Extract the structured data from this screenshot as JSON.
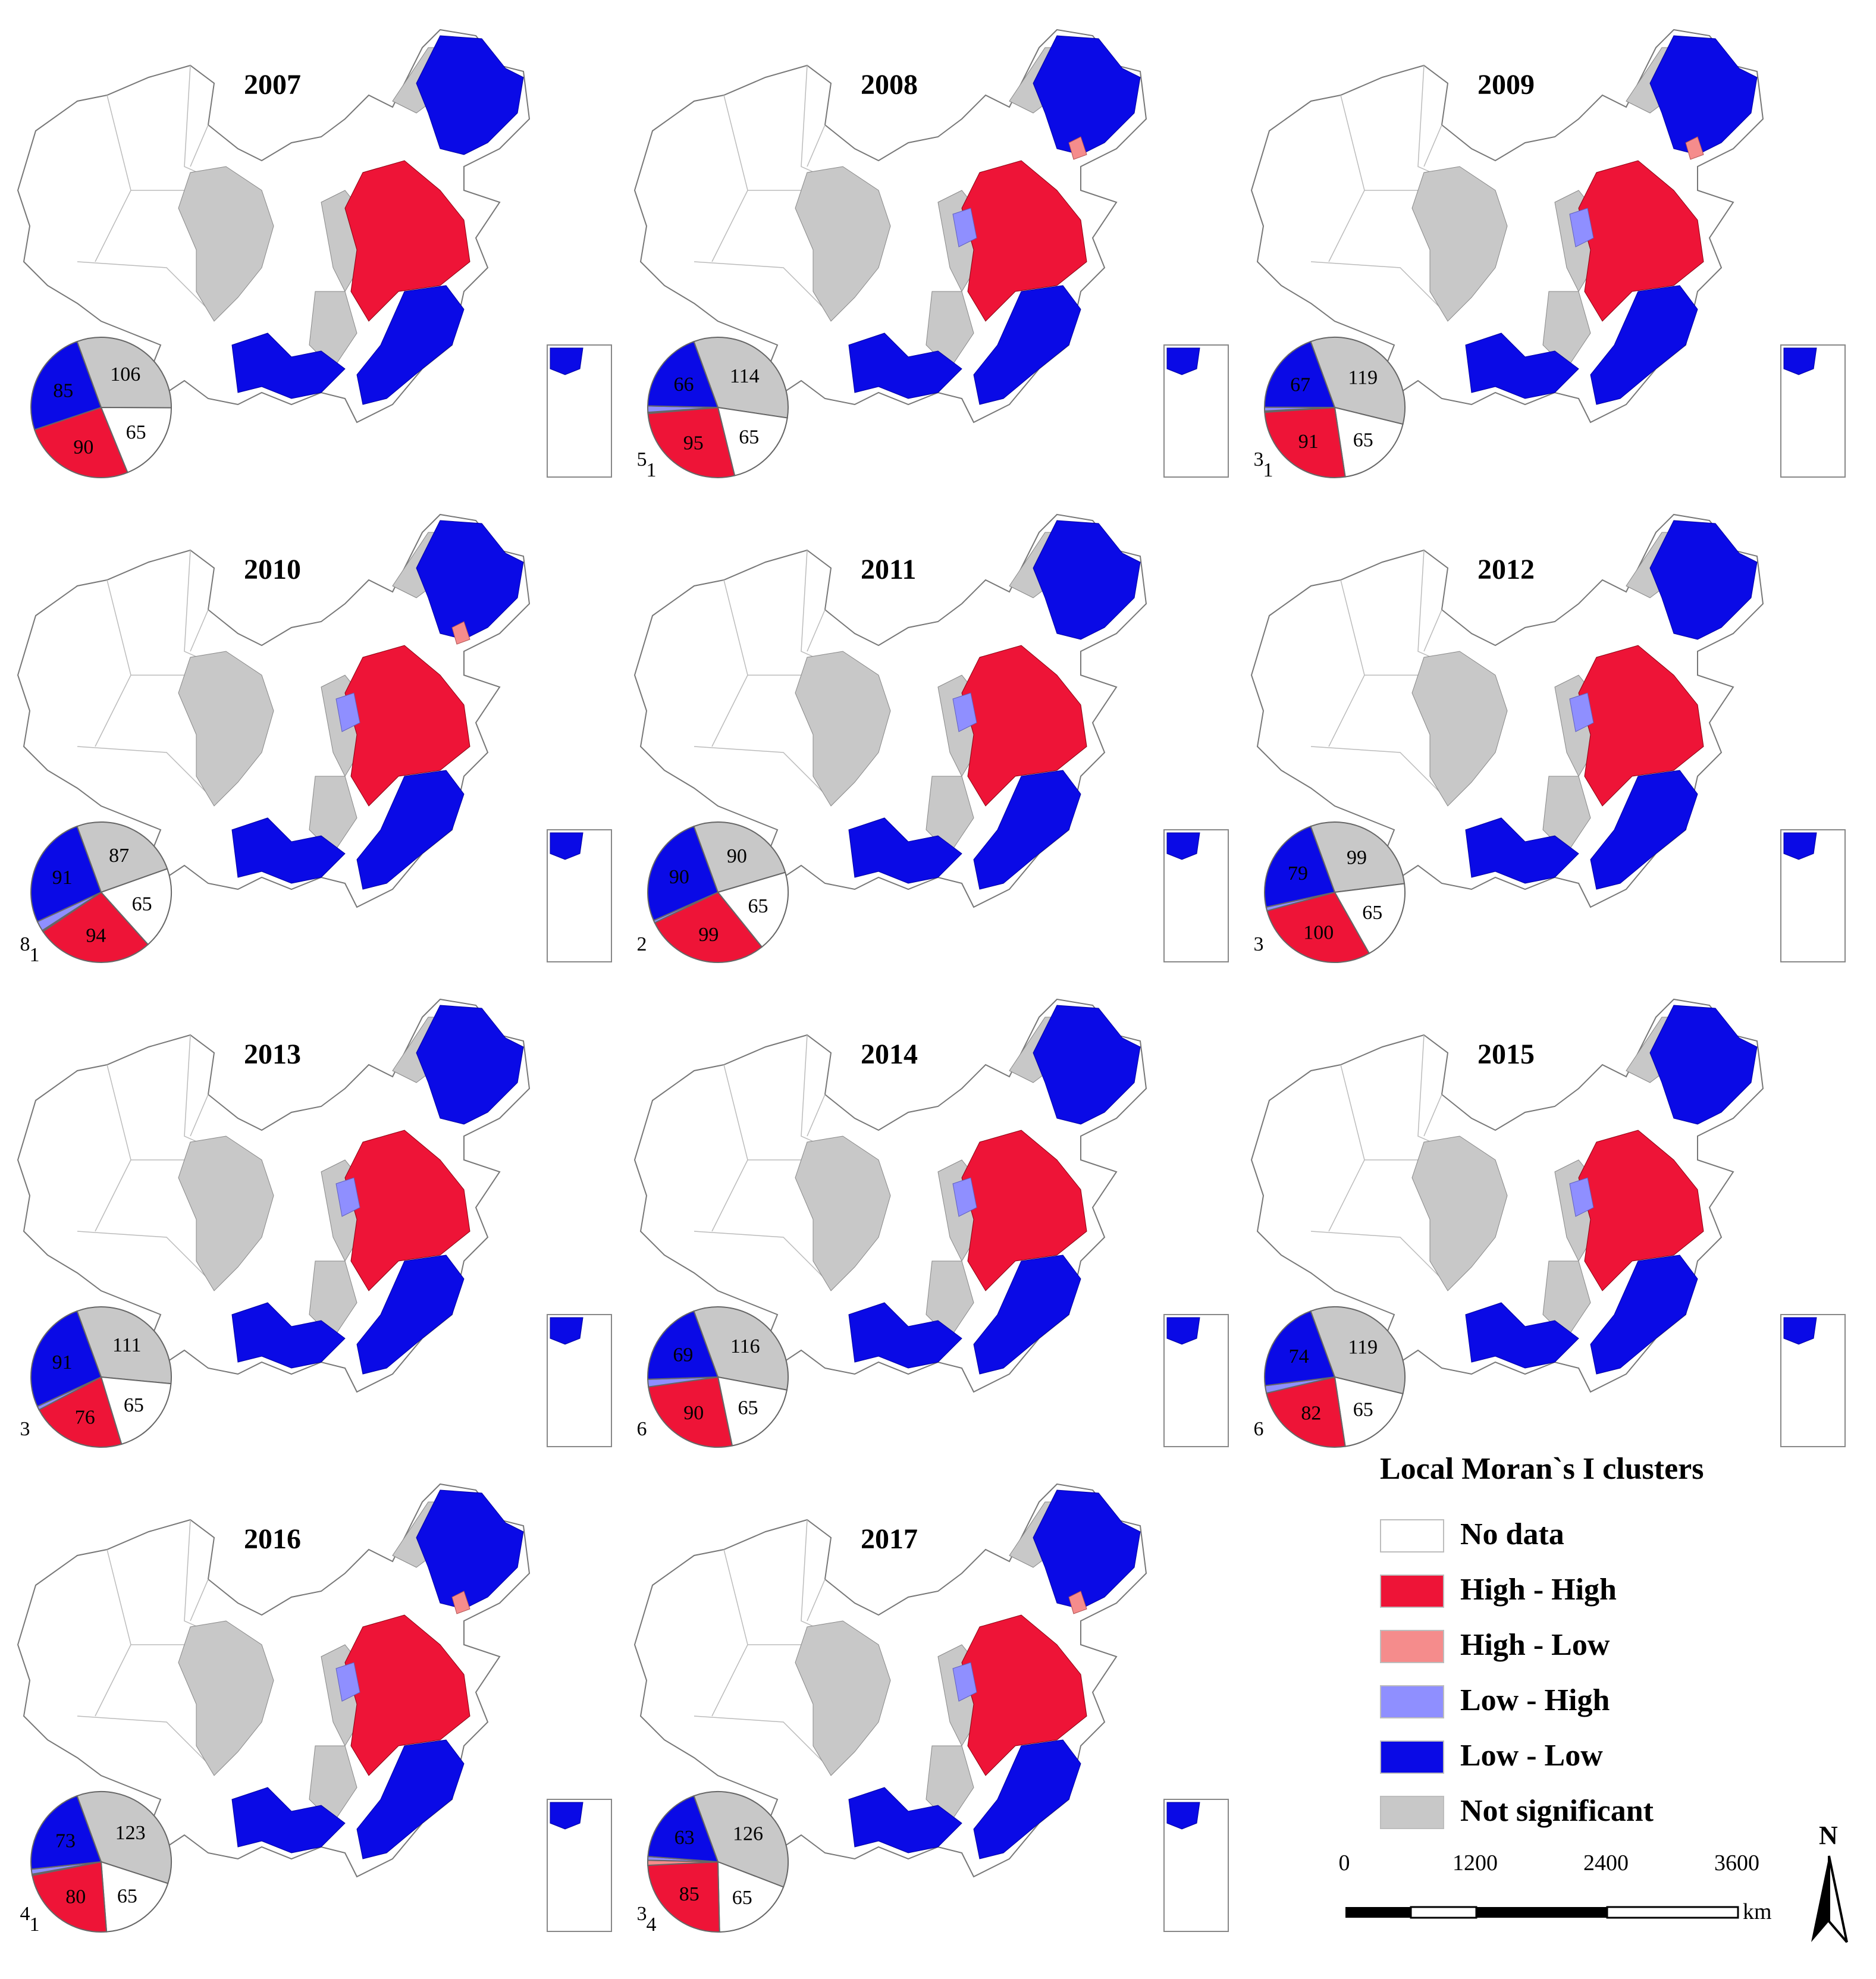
{
  "legend": {
    "title": "Local Moran`s I clusters",
    "items": [
      {
        "key": "nodata",
        "label": "No data",
        "color": "#ffffff"
      },
      {
        "key": "hh",
        "label": "High - High",
        "color": "#ee1437"
      },
      {
        "key": "hl",
        "label": "High - Low",
        "color": "#f58c8c"
      },
      {
        "key": "lh",
        "label": "Low - High",
        "color": "#8f8fff"
      },
      {
        "key": "ll",
        "label": "Low - Low",
        "color": "#0a0ae6"
      },
      {
        "key": "ns",
        "label": "Not significant",
        "color": "#c8c8c8"
      }
    ]
  },
  "scale_bar": {
    "ticks": [
      "0",
      "1200",
      "2400",
      "3600"
    ],
    "unit": "km"
  },
  "north_arrow": {
    "label": "N"
  },
  "chart_data": {
    "type": "pie",
    "categories": [
      "No data",
      "High - High",
      "High - Low",
      "Low - High",
      "Low - Low",
      "Not significant"
    ],
    "panels": [
      {
        "year": "2007",
        "values": {
          "nodata": 65,
          "hh": 90,
          "hl": 0,
          "lh": 0,
          "ll": 85,
          "ns": 106
        },
        "labels": [
          {
            "key": "ns",
            "text": "106"
          },
          {
            "key": "nodata",
            "text": "65"
          },
          {
            "key": "hh",
            "text": "90"
          },
          {
            "key": "ll",
            "text": "85"
          }
        ]
      },
      {
        "year": "2008",
        "values": {
          "nodata": 65,
          "hh": 95,
          "hl": 1,
          "lh": 5,
          "ll": 66,
          "ns": 114
        },
        "labels": [
          {
            "key": "ns",
            "text": "114"
          },
          {
            "key": "nodata",
            "text": "65"
          },
          {
            "key": "hh",
            "text": "95"
          },
          {
            "key": "ll",
            "text": "66"
          },
          {
            "key": "lh",
            "text": "5"
          },
          {
            "key": "hl",
            "text": "1"
          }
        ]
      },
      {
        "year": "2009",
        "values": {
          "nodata": 65,
          "hh": 91,
          "hl": 1,
          "lh": 3,
          "ll": 67,
          "ns": 119
        },
        "labels": [
          {
            "key": "ns",
            "text": "119"
          },
          {
            "key": "nodata",
            "text": "65"
          },
          {
            "key": "hh",
            "text": "91"
          },
          {
            "key": "ll",
            "text": "67"
          },
          {
            "key": "lh",
            "text": "3"
          },
          {
            "key": "hl",
            "text": "1"
          }
        ]
      },
      {
        "year": "2010",
        "values": {
          "nodata": 65,
          "hh": 94,
          "hl": 1,
          "lh": 8,
          "ll": 91,
          "ns": 87
        },
        "labels": [
          {
            "key": "ns",
            "text": "87"
          },
          {
            "key": "nodata",
            "text": "65"
          },
          {
            "key": "hh",
            "text": "94"
          },
          {
            "key": "ll",
            "text": "91"
          },
          {
            "key": "lh",
            "text": "8"
          },
          {
            "key": "hl",
            "text": "1"
          }
        ]
      },
      {
        "year": "2011",
        "values": {
          "nodata": 65,
          "hh": 99,
          "hl": 0,
          "lh": 2,
          "ll": 90,
          "ns": 90
        },
        "labels": [
          {
            "key": "ns",
            "text": "90"
          },
          {
            "key": "nodata",
            "text": "65"
          },
          {
            "key": "hh",
            "text": "99"
          },
          {
            "key": "ll",
            "text": "90"
          },
          {
            "key": "lh",
            "text": "2"
          }
        ]
      },
      {
        "year": "2012",
        "values": {
          "nodata": 65,
          "hh": 100,
          "hl": 0,
          "lh": 3,
          "ll": 79,
          "ns": 99
        },
        "labels": [
          {
            "key": "ns",
            "text": "99"
          },
          {
            "key": "nodata",
            "text": "65"
          },
          {
            "key": "hh",
            "text": "100"
          },
          {
            "key": "ll",
            "text": "79"
          },
          {
            "key": "lh",
            "text": "3"
          }
        ]
      },
      {
        "year": "2013",
        "values": {
          "nodata": 65,
          "hh": 76,
          "hl": 0,
          "lh": 3,
          "ll": 91,
          "ns": 111
        },
        "labels": [
          {
            "key": "ns",
            "text": "111"
          },
          {
            "key": "nodata",
            "text": "65"
          },
          {
            "key": "hh",
            "text": "76"
          },
          {
            "key": "ll",
            "text": "91"
          },
          {
            "key": "lh",
            "text": "3"
          }
        ]
      },
      {
        "year": "2014",
        "values": {
          "nodata": 65,
          "hh": 90,
          "hl": 0,
          "lh": 6,
          "ll": 69,
          "ns": 116
        },
        "labels": [
          {
            "key": "ns",
            "text": "116"
          },
          {
            "key": "nodata",
            "text": "65"
          },
          {
            "key": "hh",
            "text": "90"
          },
          {
            "key": "ll",
            "text": "69"
          },
          {
            "key": "lh",
            "text": "6"
          }
        ]
      },
      {
        "year": "2015",
        "values": {
          "nodata": 65,
          "hh": 82,
          "hl": 0,
          "lh": 6,
          "ll": 74,
          "ns": 119
        },
        "labels": [
          {
            "key": "ns",
            "text": "119"
          },
          {
            "key": "nodata",
            "text": "65"
          },
          {
            "key": "hh",
            "text": "82"
          },
          {
            "key": "ll",
            "text": "74"
          },
          {
            "key": "lh",
            "text": "6"
          }
        ]
      },
      {
        "year": "2016",
        "values": {
          "nodata": 65,
          "hh": 80,
          "hl": 1,
          "lh": 4,
          "ll": 73,
          "ns": 123
        },
        "labels": [
          {
            "key": "ns",
            "text": "123"
          },
          {
            "key": "nodata",
            "text": "65"
          },
          {
            "key": "hh",
            "text": "80"
          },
          {
            "key": "ll",
            "text": "73"
          },
          {
            "key": "lh",
            "text": "4"
          },
          {
            "key": "hl",
            "text": "1"
          }
        ]
      },
      {
        "year": "2017",
        "values": {
          "nodata": 65,
          "hh": 85,
          "hl": 4,
          "lh": 3,
          "ll": 63,
          "ns": 126
        },
        "labels": [
          {
            "key": "ns",
            "text": "126"
          },
          {
            "key": "nodata",
            "text": "65"
          },
          {
            "key": "hh",
            "text": "85"
          },
          {
            "key": "ll",
            "text": "63"
          },
          {
            "key": "lh",
            "text": "3"
          },
          {
            "key": "hl",
            "text": "4"
          }
        ]
      }
    ]
  }
}
